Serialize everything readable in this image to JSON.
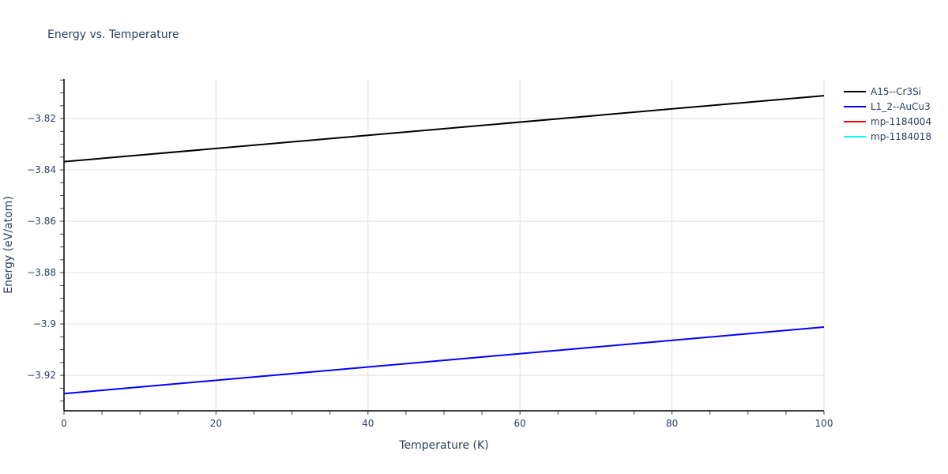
{
  "title": "Energy vs. Temperature",
  "chart_data": {
    "type": "line",
    "title": "Energy vs. Temperature",
    "xlabel": "Temperature (K)",
    "ylabel": "Energy (eV/atom)",
    "xlim": [
      0,
      100
    ],
    "ylim": [
      -3.9338,
      -3.8046
    ],
    "x_ticks": [
      0,
      20,
      40,
      60,
      80,
      100
    ],
    "y_ticks": [
      -3.92,
      -3.9,
      -3.88,
      -3.86,
      -3.84,
      -3.82
    ],
    "y_tick_labels": [
      "−3.92",
      "−3.9",
      "−3.88",
      "−3.86",
      "−3.84",
      "−3.82"
    ],
    "grid": true,
    "legend_position": "right",
    "series": [
      {
        "name": "A15--Cr3Si",
        "color": "#000000",
        "x": [
          0,
          100
        ],
        "values": [
          -3.8368,
          -3.8111
        ]
      },
      {
        "name": "L1_2--AuCu3",
        "color": "#0000ff",
        "x": [
          0,
          100
        ],
        "values": [
          -3.9271,
          -3.9012
        ]
      },
      {
        "name": "mp-1184004",
        "color": "#ff0000",
        "x": [],
        "values": []
      },
      {
        "name": "mp-1184018",
        "color": "#00ffff",
        "x": [],
        "values": []
      }
    ]
  },
  "legend": [
    {
      "label": "A15--Cr3Si",
      "color": "#000000"
    },
    {
      "label": "L1_2--AuCu3",
      "color": "#0000ff"
    },
    {
      "label": "mp-1184004",
      "color": "#ff0000"
    },
    {
      "label": "mp-1184018",
      "color": "#00ffff"
    }
  ]
}
